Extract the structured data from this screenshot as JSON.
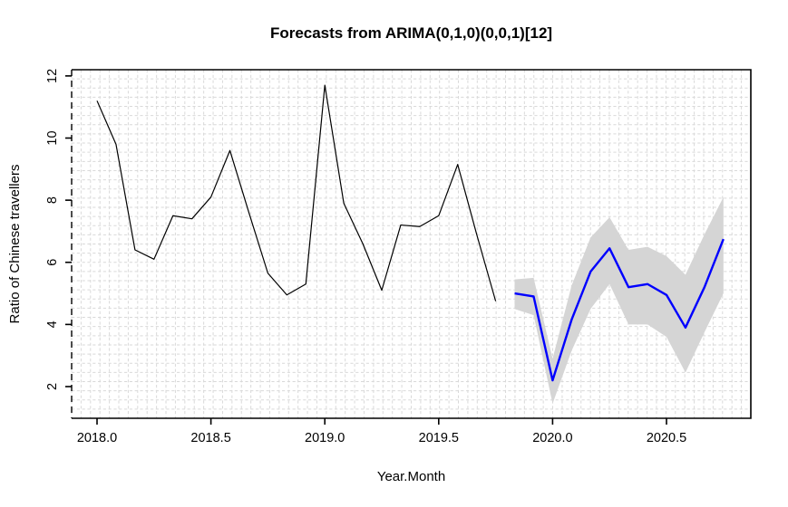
{
  "figure": {
    "title": "Forecasts from ARIMA(0,1,0)(0,0,1)[12]",
    "x_axis_label": "Year.Month",
    "y_axis_label": "Ratio of Chinese travellers"
  },
  "colors": {
    "observed_line": "#000000",
    "forecast_line": "#0000ff",
    "interval_band": "#d5d5d5",
    "grid": "#d9d9d9",
    "axis": "#000000",
    "text": "#000000",
    "background": "#ffffff"
  },
  "chart_data": {
    "type": "line",
    "title": "Forecasts from ARIMA(0,1,0)(0,0,1)[12]",
    "xlabel": "Year.Month",
    "ylabel": "Ratio of Chinese travellers",
    "xlim": [
      2017.8885,
      2020.8702
    ],
    "ylim": [
      0.98,
      12.2
    ],
    "x_ticks": [
      2018.0,
      2018.5,
      2019.0,
      2019.5,
      2020.0,
      2020.5
    ],
    "x_tick_labels": [
      "2018.0",
      "2018.5",
      "2019.0",
      "2019.5",
      "2020.0",
      "2020.5"
    ],
    "y_ticks": [
      2,
      4,
      6,
      8,
      10,
      12
    ],
    "y_tick_labels": [
      "2",
      "4",
      "6",
      "8",
      "10",
      "12"
    ],
    "grid": {
      "on": true,
      "nx": 72,
      "ny": 38,
      "style": "dashed-fine"
    },
    "legend": "none",
    "series": [
      {
        "name": "observed",
        "role": "history",
        "x": [
          2018.0,
          2018.0833,
          2018.1667,
          2018.25,
          2018.3333,
          2018.4167,
          2018.5,
          2018.5833,
          2018.6667,
          2018.75,
          2018.8333,
          2018.9167,
          2019.0,
          2019.0833,
          2019.1667,
          2019.25,
          2019.3333,
          2019.4167,
          2019.5,
          2019.5833,
          2019.6667,
          2019.75
        ],
        "values": [
          11.2,
          9.8,
          6.4,
          6.1,
          7.5,
          7.4,
          8.1,
          9.6,
          7.6,
          5.65,
          4.95,
          5.3,
          11.7,
          7.9,
          6.6,
          5.1,
          7.2,
          7.15,
          7.5,
          9.15,
          6.9,
          4.75
        ]
      },
      {
        "name": "forecast-mean",
        "role": "forecast",
        "x": [
          2019.8333,
          2019.9167,
          2020.0,
          2020.0833,
          2020.1667,
          2020.25,
          2020.3333,
          2020.4167,
          2020.5,
          2020.5833,
          2020.6667,
          2020.75
        ],
        "values": [
          5.0,
          4.9,
          2.2,
          4.15,
          5.7,
          6.45,
          5.2,
          5.3,
          4.95,
          3.9,
          5.2,
          6.75
        ]
      },
      {
        "name": "forecast-interval",
        "role": "confidence-band",
        "x": [
          2019.8333,
          2019.9167,
          2020.0,
          2020.0833,
          2020.1667,
          2020.25,
          2020.3333,
          2020.4167,
          2020.5,
          2020.5833,
          2020.6667,
          2020.75
        ],
        "lower": [
          4.5,
          4.3,
          1.45,
          3.15,
          4.5,
          5.3,
          4.0,
          4.0,
          3.6,
          2.45,
          3.75,
          5.0
        ],
        "upper": [
          5.45,
          5.5,
          2.9,
          5.25,
          6.8,
          7.45,
          6.4,
          6.5,
          6.2,
          5.6,
          6.9,
          8.1
        ]
      }
    ]
  }
}
